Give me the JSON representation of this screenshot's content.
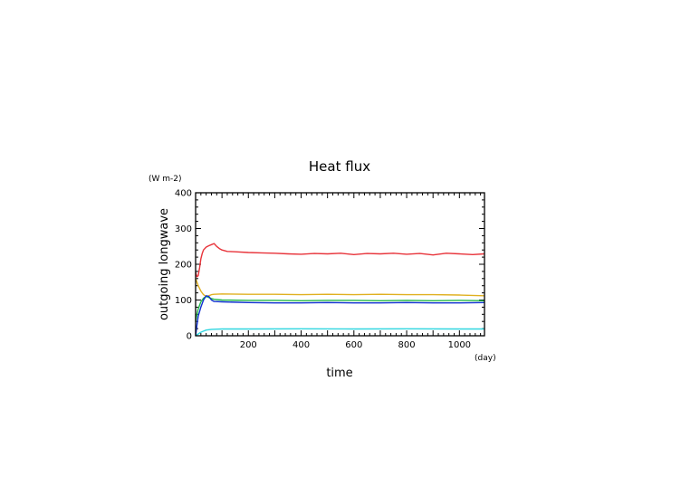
{
  "chart_data": {
    "type": "line",
    "title": "Heat flux",
    "xlabel": "time",
    "xunit": "(day)",
    "ylabel": "outgoing longwave",
    "yunit": "(W m-2)",
    "xlim": [
      0,
      1095
    ],
    "ylim": [
      0,
      400
    ],
    "x_ticks": [
      200,
      400,
      600,
      800,
      1000
    ],
    "y_ticks": [
      0,
      100,
      200,
      300,
      400
    ],
    "grid": false,
    "series": [
      {
        "color": "#e8333a",
        "x": [
          0,
          5,
          10,
          15,
          20,
          25,
          30,
          40,
          50,
          60,
          70,
          80,
          90,
          100,
          120,
          150,
          200,
          250,
          300,
          350,
          400,
          450,
          500,
          550,
          600,
          650,
          700,
          750,
          800,
          850,
          900,
          950,
          1000,
          1050,
          1095
        ],
        "values": [
          178,
          165,
          168,
          190,
          215,
          230,
          240,
          248,
          252,
          255,
          258,
          250,
          244,
          240,
          236,
          235,
          233,
          232,
          231,
          229,
          228,
          230,
          229,
          231,
          227,
          230,
          229,
          231,
          228,
          230,
          226,
          231,
          229,
          227,
          229
        ]
      },
      {
        "color": "#e0b020",
        "x": [
          0,
          5,
          10,
          20,
          30,
          40,
          50,
          60,
          70,
          100,
          200,
          300,
          400,
          500,
          600,
          700,
          800,
          900,
          1000,
          1095
        ],
        "values": [
          160,
          150,
          140,
          125,
          115,
          110,
          112,
          115,
          116,
          117,
          116,
          116,
          115,
          116,
          115,
          116,
          115,
          115,
          114,
          112
        ]
      },
      {
        "color": "#22b84a",
        "x": [
          0,
          5,
          10,
          20,
          30,
          40,
          50,
          60,
          70,
          100,
          200,
          300,
          400,
          500,
          600,
          700,
          800,
          900,
          1000,
          1095
        ],
        "values": [
          40,
          60,
          75,
          95,
          105,
          110,
          107,
          104,
          102,
          100,
          99,
          99,
          98,
          99,
          99,
          98,
          99,
          98,
          99,
          98
        ]
      },
      {
        "color": "#1030d0",
        "x": [
          0,
          5,
          10,
          20,
          30,
          40,
          50,
          60,
          70,
          100,
          200,
          300,
          400,
          500,
          600,
          700,
          800,
          900,
          1000,
          1095
        ],
        "values": [
          0,
          30,
          55,
          80,
          100,
          112,
          110,
          100,
          96,
          95,
          93,
          92,
          92,
          93,
          92,
          92,
          93,
          92,
          92,
          93
        ]
      },
      {
        "color": "#30d6e0",
        "x": [
          0,
          10,
          20,
          30,
          40,
          50,
          60,
          80,
          100,
          200,
          400,
          600,
          800,
          1000,
          1095
        ],
        "values": [
          0,
          5,
          10,
          13,
          16,
          17,
          18,
          18.5,
          19,
          19,
          19.5,
          19,
          19.5,
          19,
          19
        ]
      }
    ]
  }
}
